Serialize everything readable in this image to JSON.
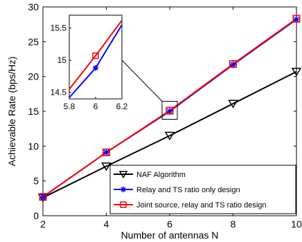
{
  "chart_data": {
    "type": "line",
    "title": "",
    "xlabel": "Number of antennas N",
    "ylabel": "Achievable Rate (bps/Hz)",
    "xlim": [
      2,
      10
    ],
    "ylim": [
      0,
      30
    ],
    "xticks": [
      "2",
      "4",
      "6",
      "8",
      "10"
    ],
    "yticks": [
      "0",
      "5",
      "10",
      "15",
      "20",
      "25",
      "30"
    ],
    "grid": false,
    "legend_position": "bottom-right",
    "x": [
      2,
      4,
      6,
      8,
      10
    ],
    "series": [
      {
        "name": "NAF Algorithm",
        "values": [
          2.6,
          7.1,
          11.5,
          16.1,
          20.7
        ],
        "color": "#000000",
        "marker": "triangle-down"
      },
      {
        "name": "Relay and TS ratio only design",
        "values": [
          2.7,
          9.1,
          15.0,
          21.7,
          28.2
        ],
        "color": "#0000ff",
        "marker": "asterisk"
      },
      {
        "name": "Joint source, relay and TS ratio design",
        "values": [
          2.7,
          9.1,
          15.1,
          21.8,
          28.3
        ],
        "color": "#ff0000",
        "marker": "square"
      }
    ],
    "inset": {
      "xlim": [
        5.8,
        6.2
      ],
      "ylim": [
        14.4,
        15.7
      ],
      "xticks": [
        "5.8",
        "6",
        "6.2"
      ],
      "yticks": [
        "14.5",
        "15",
        "15.5"
      ],
      "lines": [
        {
          "color": "#0000ff",
          "points": [
            [
              5.8,
              14.42
            ],
            [
              6.0,
              14.88
            ],
            [
              6.2,
              15.55
            ]
          ]
        },
        {
          "color": "#ff0000",
          "points": [
            [
              5.8,
              14.55
            ],
            [
              6.0,
              15.07
            ],
            [
              6.2,
              15.62
            ]
          ]
        }
      ],
      "markers": [
        {
          "color": "#0000ff",
          "marker": "asterisk",
          "x": 6.0,
          "y": 14.88
        },
        {
          "color": "#ff0000",
          "marker": "square",
          "x": 6.0,
          "y": 15.07
        }
      ]
    }
  }
}
